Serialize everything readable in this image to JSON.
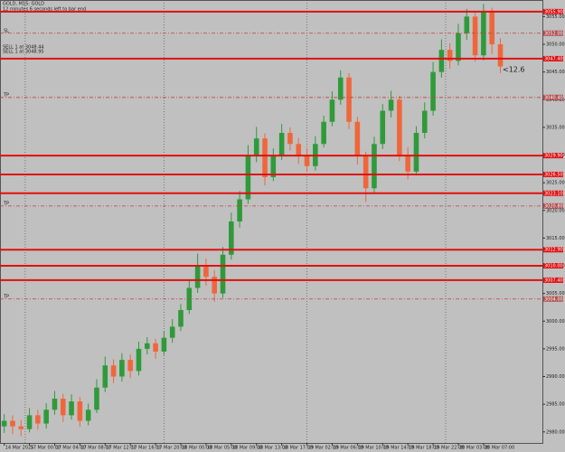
{
  "chart_data": {
    "type": "candlestick",
    "title": "GOLD, M15: GOLD",
    "subtitle": "12 minutes 6 seconds left to bar end",
    "annotations": [
      "SELL 1 at 3048.44",
      "SELL 1 at 3048.95"
    ],
    "bull_color": "#2f9a3a",
    "bear_color": "#f0663a",
    "background": "#c0c0c0",
    "open": [
      2981,
      2982,
      2981,
      2980.5,
      2983,
      2981.5,
      2984,
      2986,
      2983,
      2985.5,
      2982,
      2984,
      2988,
      2992,
      2990,
      2993,
      2991,
      2995,
      2996,
      2994.5,
      2997,
      2999,
      3002,
      3006,
      3010,
      3008,
      3005,
      3012,
      3018,
      3022,
      3030,
      3033,
      3026,
      3030,
      3034,
      3032,
      3030,
      3028,
      3032,
      3036,
      3040,
      3044,
      3036,
      3030,
      3024,
      3032,
      3038,
      3040,
      3030,
      3027,
      3034,
      3038,
      3045,
      3049,
      3047,
      3052,
      3055,
      3048,
      3056,
      3050
    ],
    "high": [
      2983.2,
      2983,
      2982.1,
      2984.3,
      2984,
      2985.2,
      2987.4,
      2986.9,
      2986.8,
      2986.3,
      2985.1,
      2989.5,
      2993.6,
      2993.1,
      2994.2,
      2994,
      2996.3,
      2997.1,
      2996.8,
      2998.2,
      3000.4,
      3003.1,
      3007.4,
      3012.2,
      3011.3,
      3009.2,
      3013.4,
      3019.6,
      3023.5,
      3031.8,
      3035.1,
      3033.9,
      3031.2,
      3035.6,
      3035,
      3033.1,
      3031.2,
      3033.4,
      3037.1,
      3041.5,
      3045.3,
      3044.8,
      3036.9,
      3030.6,
      3033.3,
      3039.2,
      3041.6,
      3040.7,
      3031.4,
      3035.2,
      3039.5,
      3046.8,
      3050.9,
      3050.2,
      3053.7,
      3056.4,
      3055.7,
      3057.3,
      3056.6,
      3051.1
    ],
    "low": [
      2979.8,
      2979.6,
      2979.2,
      2979.9,
      2980.4,
      2980.6,
      2983.1,
      2981.8,
      2982.2,
      2980.9,
      2981.2,
      2983.4,
      2987.2,
      2988.8,
      2989.1,
      2989.7,
      2990.2,
      2994,
      2993.2,
      2993.9,
      2996.1,
      2998.2,
      3001.3,
      3005.1,
      3006.4,
      3003.5,
      3004.2,
      3011.1,
      3016.9,
      3021.2,
      3028.7,
      3024.5,
      3025.3,
      3029.1,
      3030.8,
      3028.4,
      3026.9,
      3027.2,
      3031.4,
      3035.2,
      3039.1,
      3034.7,
      3028.3,
      3021.5,
      3023.1,
      3031.1,
      3036.8,
      3028.9,
      3025.6,
      3026.3,
      3033,
      3037.1,
      3044,
      3045.6,
      3046.2,
      3050.8,
      3046.9,
      3047.1,
      3048.2,
      3044.8
    ],
    "close": [
      2982,
      2981,
      2980.5,
      2983,
      2981.5,
      2984,
      2986,
      2983,
      2985.5,
      2982,
      2984,
      2988,
      2992,
      2990,
      2993,
      2991,
      2995,
      2996,
      2994.5,
      2997,
      2999,
      3002,
      3006,
      3010,
      3008,
      3005,
      3012,
      3018,
      3022,
      3030,
      3033,
      3026,
      3030,
      3034,
      3032,
      3030,
      3028,
      3032,
      3036,
      3040,
      3044,
      3036,
      3030,
      3024,
      3032,
      3038,
      3040,
      3030,
      3027,
      3034,
      3038,
      3045,
      3049,
      3047,
      3052,
      3055,
      3048,
      3056,
      3050,
      3046
    ],
    "xlim": [
      -0.5,
      64
    ],
    "xticks": [
      {
        "value": 0,
        "label": "14 Mar 2025"
      },
      {
        "value": 3,
        "label": "17 Mar 00:00"
      },
      {
        "value": 6,
        "label": "17 Mar 04:00"
      },
      {
        "value": 9,
        "label": "17 Mar 08:00"
      },
      {
        "value": 12,
        "label": "17 Mar 12:00"
      },
      {
        "value": 15,
        "label": "17 Mar 16:00"
      },
      {
        "value": 18,
        "label": "17 Mar 20:00"
      },
      {
        "value": 21,
        "label": "18 Mar 00:00"
      },
      {
        "value": 24,
        "label": "18 Mar 05:00"
      },
      {
        "value": 27,
        "label": "18 Mar 09:00"
      },
      {
        "value": 30,
        "label": "18 Mar 13:00"
      },
      {
        "value": 33,
        "label": "18 Mar 17:00"
      },
      {
        "value": 36,
        "label": "19 Mar 02:00"
      },
      {
        "value": 39,
        "label": "19 Mar 06:00"
      },
      {
        "value": 42,
        "label": "19 Mar 10:00"
      },
      {
        "value": 45,
        "label": "19 Mar 14:00"
      },
      {
        "value": 48,
        "label": "19 Mar 18:00"
      },
      {
        "value": 51,
        "label": "19 Mar 22:00"
      },
      {
        "value": 54,
        "label": "20 Mar 03:00"
      },
      {
        "value": 57,
        "label": "20 Mar 07:00"
      }
    ],
    "day_separators": [
      2.5,
      19,
      36,
      52.5
    ],
    "ylim": [
      2978,
      3058
    ],
    "yticks": [
      {
        "value": 2980,
        "label": "2980.00"
      },
      {
        "value": 2985,
        "label": "2985.00"
      },
      {
        "value": 2990,
        "label": "2990.00"
      },
      {
        "value": 2995,
        "label": "2995.00"
      },
      {
        "value": 3000,
        "label": "3000.00"
      },
      {
        "value": 3005,
        "label": "3005.00"
      },
      {
        "value": 3010,
        "label": "3010.00"
      },
      {
        "value": 3015,
        "label": "3015.00"
      },
      {
        "value": 3020,
        "label": "3020.00"
      },
      {
        "value": 3025,
        "label": "3025.00"
      },
      {
        "value": 3030,
        "label": "3030.00"
      },
      {
        "value": 3035,
        "label": "3035.00"
      },
      {
        "value": 3040,
        "label": "3040.00"
      },
      {
        "value": 3045,
        "label": "3045.00"
      },
      {
        "value": 3050,
        "label": "3050.00"
      },
      {
        "value": 3055,
        "label": "3055.00"
      }
    ],
    "levels": [
      {
        "value": 3055.9,
        "label": "3055.90",
        "style": "solid"
      },
      {
        "value": 3052.0,
        "label": "3052.00",
        "style": "dashed",
        "note": "SL"
      },
      {
        "value": 3047.4,
        "label": "3047.40",
        "style": "solid"
      },
      {
        "value": 3040.4,
        "label": "3040.40",
        "style": "dashed",
        "note": "TP"
      },
      {
        "value": 3029.9,
        "label": "3029.90",
        "style": "solid"
      },
      {
        "value": 3026.5,
        "label": "3026.50",
        "style": "solid"
      },
      {
        "value": 3023.1,
        "label": "3023.10",
        "style": "solid"
      },
      {
        "value": 3020.8,
        "label": "3020.80",
        "style": "dashed",
        "note": "TP"
      },
      {
        "value": 3012.9,
        "label": "3012.90",
        "style": "solid"
      },
      {
        "value": 3010.0,
        "label": "3010.00",
        "style": "solid"
      },
      {
        "value": 3007.4,
        "label": "3007.40",
        "style": "solid"
      },
      {
        "value": 3004.0,
        "label": "3004.00",
        "style": "dashed",
        "note": "TP"
      }
    ],
    "spread_label": "<12.6"
  }
}
